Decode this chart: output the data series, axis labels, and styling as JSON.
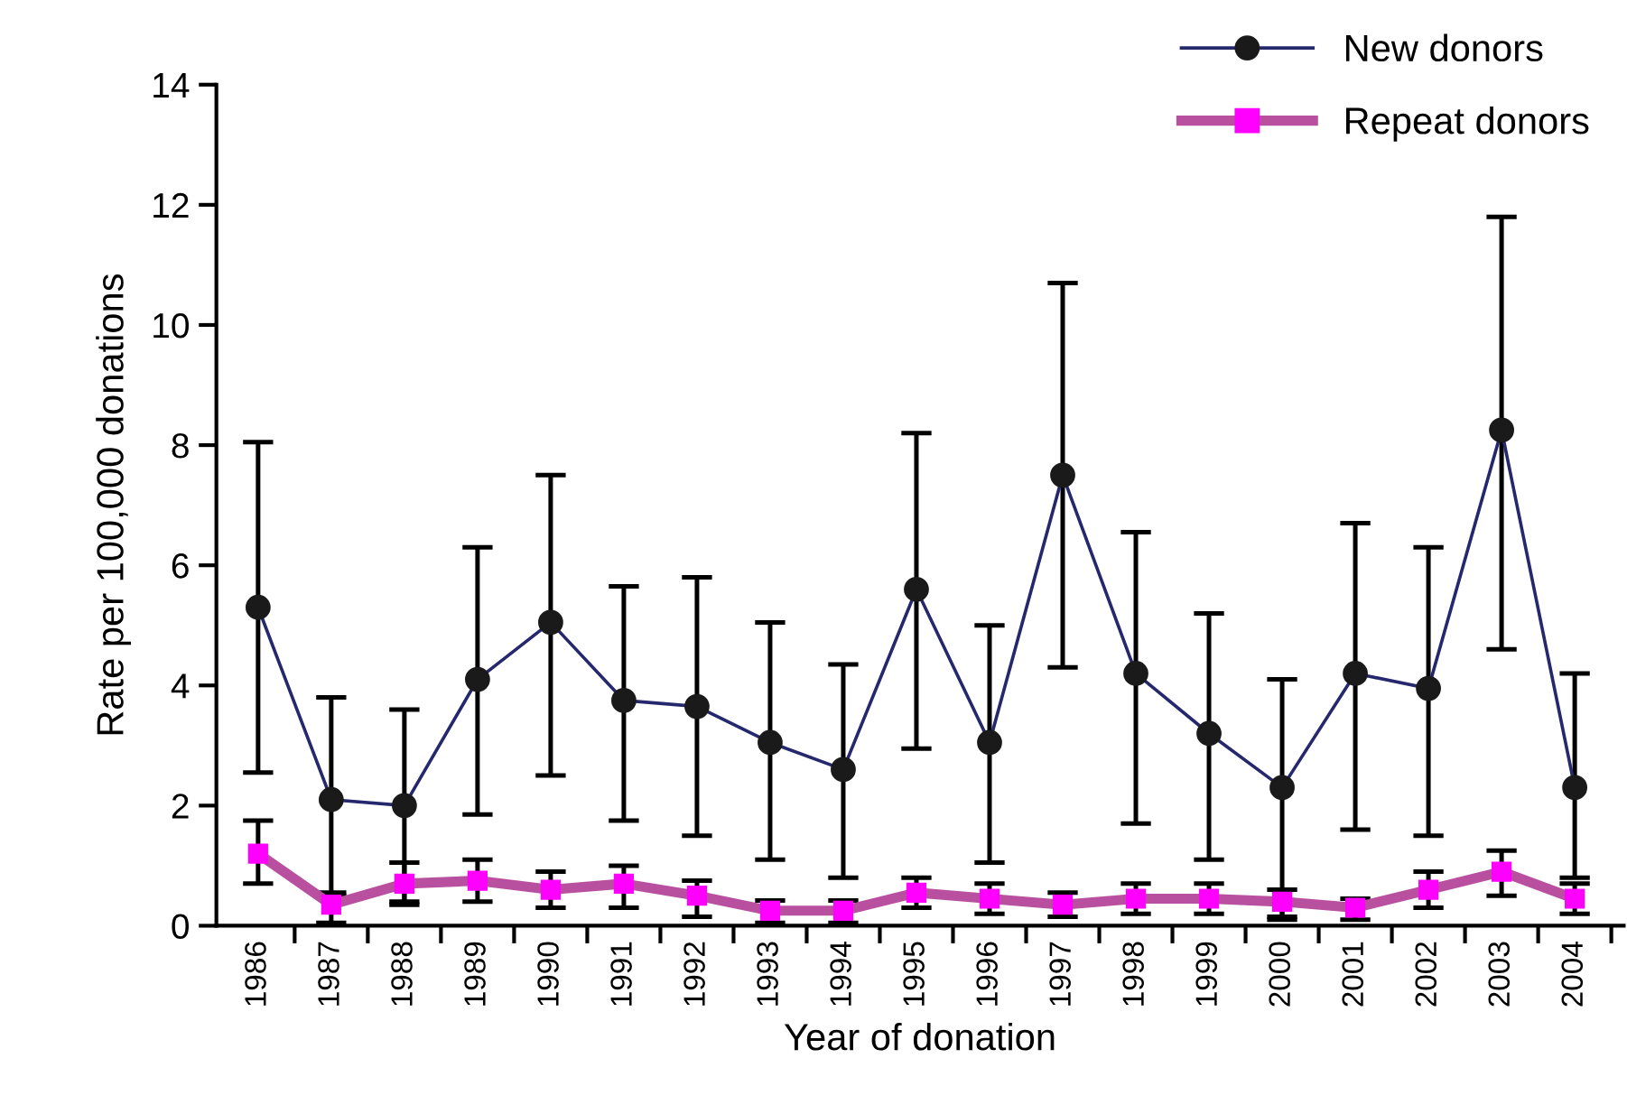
{
  "chart_data": {
    "type": "line",
    "xlabel": "Year of donation",
    "ylabel": "Rate per 100,000 donations",
    "categories": [
      "1986",
      "1987",
      "1988",
      "1989",
      "1990",
      "1991",
      "1992",
      "1993",
      "1994",
      "1995",
      "1996",
      "1997",
      "1998",
      "1999",
      "2000",
      "2001",
      "2002",
      "2003",
      "2004"
    ],
    "series": [
      {
        "name": "New donors",
        "color": "#26286e",
        "marker": "circle",
        "values": [
          5.3,
          2.1,
          2.0,
          4.1,
          5.05,
          3.75,
          3.65,
          3.05,
          2.6,
          5.6,
          3.05,
          7.5,
          4.2,
          3.2,
          2.3,
          4.2,
          3.95,
          8.25,
          2.3
        ],
        "errors": [
          [
            2.55,
            8.05
          ],
          [
            0.5,
            3.8
          ],
          [
            0.4,
            3.6
          ],
          [
            1.85,
            6.3
          ],
          [
            2.5,
            7.5
          ],
          [
            1.75,
            5.65
          ],
          [
            1.5,
            5.8
          ],
          [
            1.1,
            5.05
          ],
          [
            0.8,
            4.35
          ],
          [
            2.95,
            8.2
          ],
          [
            1.05,
            5.0
          ],
          [
            4.3,
            10.7
          ],
          [
            1.7,
            6.55
          ],
          [
            1.1,
            5.2
          ],
          [
            0.1,
            4.1
          ],
          [
            1.6,
            6.7
          ],
          [
            1.5,
            6.3
          ],
          [
            4.6,
            11.8
          ],
          [
            0.8,
            4.2
          ]
        ]
      },
      {
        "name": "Repeat donors",
        "color": "#b9509f",
        "marker": "square",
        "values": [
          1.2,
          0.35,
          0.7,
          0.75,
          0.6,
          0.7,
          0.5,
          0.25,
          0.25,
          0.55,
          0.45,
          0.35,
          0.45,
          0.45,
          0.4,
          0.3,
          0.6,
          0.9,
          0.45
        ],
        "errors": [
          [
            0.7,
            1.75
          ],
          [
            0.05,
            0.55
          ],
          [
            0.35,
            1.05
          ],
          [
            0.4,
            1.1
          ],
          [
            0.3,
            0.9
          ],
          [
            0.3,
            1.0
          ],
          [
            0.15,
            0.75
          ],
          [
            0.05,
            0.42
          ],
          [
            0.05,
            0.42
          ],
          [
            0.3,
            0.8
          ],
          [
            0.2,
            0.7
          ],
          [
            0.15,
            0.55
          ],
          [
            0.2,
            0.7
          ],
          [
            0.2,
            0.7
          ],
          [
            0.15,
            0.6
          ],
          [
            0.1,
            0.45
          ],
          [
            0.3,
            0.9
          ],
          [
            0.5,
            1.25
          ],
          [
            0.2,
            0.7
          ]
        ]
      }
    ],
    "ylim": [
      0,
      14
    ],
    "yticks": [
      0,
      2,
      4,
      6,
      8,
      10,
      12,
      14
    ],
    "grid": false,
    "legend": "top right",
    "line_style": "solid"
  }
}
